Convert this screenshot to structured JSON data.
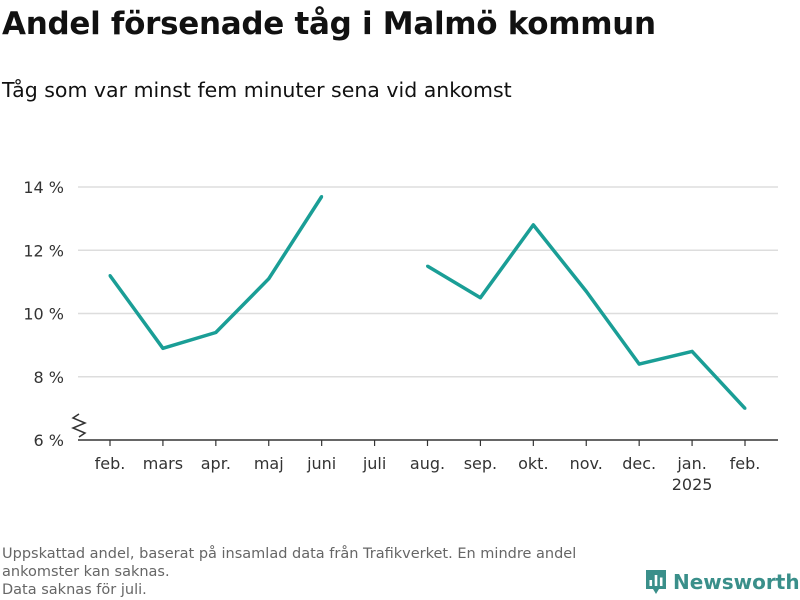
{
  "header": {
    "title": "Andel försenade tåg i Malmö kommun",
    "subtitle": "Tåg som var minst fem minuter sena vid ankomst"
  },
  "footer": {
    "notes": [
      "Uppskattad andel, baserat på insamlad data från Trafikverket. En mindre andel",
      "ankomster kan saknas.",
      "Data saknas för juli."
    ],
    "brand": "Newsworthy"
  },
  "colors": {
    "line": "#1a9e96",
    "grid": "#dddddd",
    "axis": "#333333",
    "brand": "#3a8f8a"
  },
  "chart_data": {
    "type": "line",
    "title": "Andel försenade tåg i Malmö kommun",
    "subtitle": "Tåg som var minst fem minuter sena vid ankomst",
    "categories": [
      "feb.",
      "mars",
      "apr.",
      "maj",
      "juni",
      "juli",
      "aug.",
      "sep.",
      "okt.",
      "nov.",
      "dec.",
      "jan.",
      "feb."
    ],
    "category_sublabels": [
      "",
      "",
      "",
      "",
      "",
      "",
      "",
      "",
      "",
      "",
      "",
      "2025",
      ""
    ],
    "series": [
      {
        "values": [
          11.2,
          8.9,
          9.4,
          11.1,
          13.7,
          null,
          11.5,
          10.5,
          12.8,
          10.7,
          8.4,
          8.8,
          7.0
        ]
      }
    ],
    "y_ticks": [
      6,
      8,
      10,
      12,
      14
    ],
    "y_tick_labels": [
      "6 %",
      "8 %",
      "10 %",
      "12 %",
      "14 %"
    ],
    "ylim": [
      6,
      14
    ],
    "y_axis_broken": true,
    "grid": true,
    "legend": "none"
  }
}
